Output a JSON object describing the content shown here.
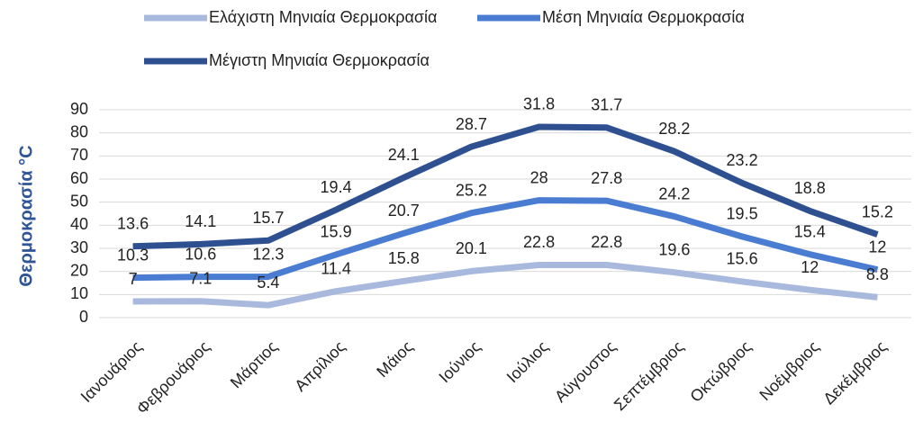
{
  "chart_data": {
    "type": "stacked-line",
    "ylabel": "Θερμοκρασία °C",
    "categories": [
      "Ιανουάριος",
      "Φεβρουάριος",
      "Μάρτιος",
      "Απρίλιος",
      "Μάιος",
      "Ιούνιος",
      "Ιούλιος",
      "Αύγουστος",
      "Σεπτέμβριος",
      "Οκτώβριος",
      "Νοέμβριος",
      "Δεκέμβριος"
    ],
    "series": [
      {
        "name": "Ελάχιστη Μηνιαία Θερμοκρασία",
        "color": "#a9b9de",
        "values": [
          7,
          7.1,
          5.4,
          11.4,
          15.8,
          20.1,
          22.8,
          22.8,
          19.6,
          15.6,
          12,
          8.8
        ]
      },
      {
        "name": "Μέση Μηνιαία Θερμοκρασία",
        "color": "#4a7dd2",
        "values": [
          10.3,
          10.6,
          12.3,
          15.9,
          20.7,
          25.2,
          28,
          27.8,
          24.2,
          19.5,
          15.4,
          12
        ]
      },
      {
        "name": "Μέγιστη Μηνιαία Θερμοκρασία",
        "color": "#2f5090",
        "values": [
          13.6,
          14.1,
          15.7,
          19.4,
          24.1,
          28.7,
          31.8,
          31.7,
          28.2,
          23.2,
          18.8,
          15.2
        ]
      }
    ],
    "ylim": [
      0,
      90
    ],
    "yticks": [
      0,
      10,
      20,
      30,
      40,
      50,
      60,
      70,
      80,
      90
    ],
    "grid": true,
    "legend": "top"
  }
}
